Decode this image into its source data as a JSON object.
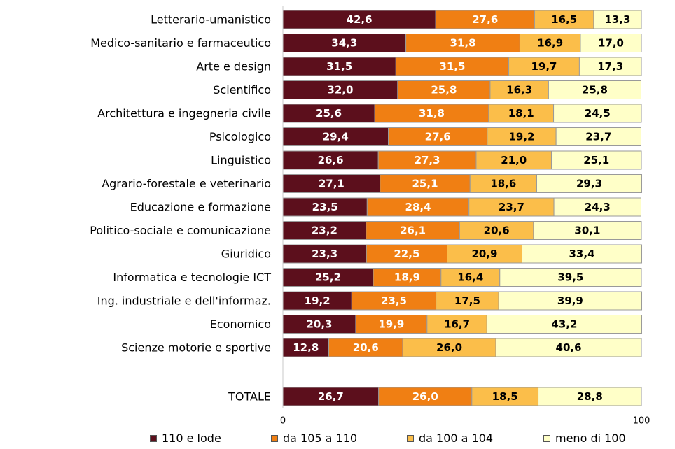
{
  "chart_data": {
    "type": "bar",
    "orientation": "horizontal",
    "stacked": true,
    "categories": [
      "Letterario-umanistico",
      "Medico-sanitario e farmaceutico",
      "Arte e design",
      "Scientifico",
      "Architettura e ingegneria civile",
      "Psicologico",
      "Linguistico",
      "Agrario-forestale e veterinario",
      "Educazione e formazione",
      "Politico-sociale e comunicazione",
      "Giuridico",
      "Informatica e tecnologie ICT",
      "Ing. industriale e dell'informaz.",
      "Economico",
      "Scienze motorie e sportive",
      "TOTALE"
    ],
    "series": [
      {
        "name": "110 e lode",
        "color": "#5c0f1c",
        "values": [
          42.6,
          34.3,
          31.5,
          32.0,
          25.6,
          29.4,
          26.6,
          27.1,
          23.5,
          23.2,
          23.3,
          25.2,
          19.2,
          20.3,
          12.8,
          26.7
        ]
      },
      {
        "name": "da 105 a 110",
        "color": "#f07f13",
        "values": [
          27.6,
          31.8,
          31.5,
          25.8,
          31.8,
          27.6,
          27.3,
          25.1,
          28.4,
          26.1,
          22.5,
          18.9,
          23.5,
          19.9,
          20.6,
          26.0
        ]
      },
      {
        "name": "da 100 a 104",
        "color": "#fbbe4a",
        "values": [
          16.5,
          16.9,
          19.7,
          16.3,
          18.1,
          19.2,
          21.0,
          18.6,
          23.7,
          20.6,
          20.9,
          16.4,
          17.5,
          16.7,
          26.0,
          18.5
        ]
      },
      {
        "name": "meno di 100",
        "color": "#ffffc8",
        "values": [
          13.3,
          17.0,
          17.3,
          25.8,
          24.5,
          23.7,
          25.1,
          29.3,
          24.3,
          30.1,
          33.4,
          39.5,
          39.9,
          43.2,
          40.6,
          28.8
        ]
      }
    ],
    "value_labels": [
      [
        "42,6",
        "27,6",
        "16,5",
        "13,3"
      ],
      [
        "34,3",
        "31,8",
        "16,9",
        "17,0"
      ],
      [
        "31,5",
        "31,5",
        "19,7",
        "17,3"
      ],
      [
        "32,0",
        "25,8",
        "16,3",
        "25,8"
      ],
      [
        "25,6",
        "31,8",
        "18,1",
        "24,5"
      ],
      [
        "29,4",
        "27,6",
        "19,2",
        "23,7"
      ],
      [
        "26,6",
        "27,3",
        "21,0",
        "25,1"
      ],
      [
        "27,1",
        "25,1",
        "18,6",
        "29,3"
      ],
      [
        "23,5",
        "28,4",
        "23,7",
        "24,3"
      ],
      [
        "23,2",
        "26,1",
        "20,6",
        "30,1"
      ],
      [
        "23,3",
        "22,5",
        "20,9",
        "33,4"
      ],
      [
        "25,2",
        "18,9",
        "16,4",
        "39,5"
      ],
      [
        "19,2",
        "23,5",
        "17,5",
        "39,9"
      ],
      [
        "20,3",
        "19,9",
        "16,7",
        "43,2"
      ],
      [
        "12,8",
        "20,6",
        "26,0",
        "40,6"
      ],
      [
        "26,7",
        "26,0",
        "18,5",
        "28,8"
      ]
    ],
    "xlim": [
      0,
      100
    ],
    "x_tick_labels": [
      "0",
      "100"
    ],
    "grid": false,
    "legend_position": "bottom"
  }
}
